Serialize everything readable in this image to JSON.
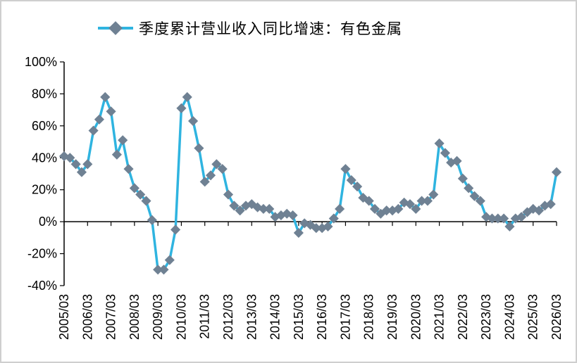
{
  "chart_data": {
    "type": "line",
    "title": "",
    "xlabel": "",
    "ylabel": "",
    "ylim": [
      -40,
      100
    ],
    "y_ticks": [
      "100%",
      "80%",
      "60%",
      "40%",
      "20%",
      "0%",
      "-20%",
      "-40%"
    ],
    "y_tick_values": [
      100,
      80,
      60,
      40,
      20,
      0,
      -20,
      -40
    ],
    "x_tick_labels": [
      "2005/03",
      "2006/03",
      "2007/03",
      "2008/03",
      "2009/03",
      "2010/03",
      "2011/03",
      "2012/03",
      "2013/03",
      "2014/03",
      "2015/03",
      "2016/03",
      "2017/03",
      "2018/03",
      "2019/03",
      "2020/03",
      "2021/03",
      "2022/03",
      "2023/03",
      "2024/03",
      "2025/03",
      "2026/03"
    ],
    "legend_position": "top-center",
    "grid": false,
    "line_color": "#2fb4e0",
    "marker_color": "#6f8193",
    "series": [
      {
        "name": "季度累计营业收入同比增速：有色金属",
        "values": [
          41,
          40,
          36,
          31,
          36,
          57,
          64,
          78,
          69,
          42,
          51,
          33,
          21,
          17,
          13,
          1,
          -30,
          -30,
          -24,
          -5,
          71,
          78,
          63,
          46,
          25,
          29,
          36,
          33,
          17,
          10,
          7,
          10,
          11,
          9,
          8,
          8,
          3,
          4,
          5,
          4,
          -7,
          -1,
          -2,
          -4,
          -4,
          -3,
          2,
          8,
          33,
          26,
          22,
          15,
          13,
          8,
          5,
          7,
          7,
          8,
          12,
          11,
          8,
          13,
          13,
          17,
          49,
          43,
          37,
          38,
          27,
          21,
          16,
          13,
          3,
          2,
          2,
          2,
          -3,
          2,
          3,
          6,
          8,
          7,
          10,
          11,
          31
        ]
      }
    ]
  }
}
